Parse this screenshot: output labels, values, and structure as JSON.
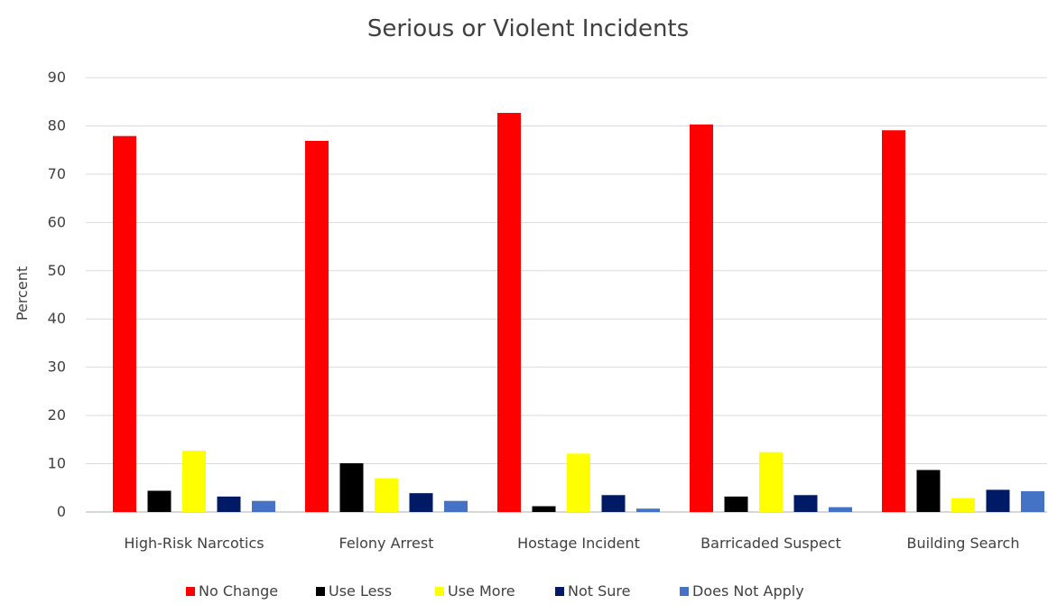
{
  "chart_data": {
    "type": "bar",
    "title": "Serious or Violent Incidents",
    "xlabel": "",
    "ylabel": "Percent",
    "ylim": [
      0,
      90
    ],
    "yticks": [
      0,
      10,
      20,
      30,
      40,
      50,
      60,
      70,
      80,
      90
    ],
    "grid": true,
    "legend_position": "bottom",
    "categories": [
      "High-Risk Narcotics",
      "Felony Arrest",
      "Hostage Incident",
      "Barricaded Suspect",
      "Building Search"
    ],
    "series": [
      {
        "name": "No Change",
        "color": "#ff0000",
        "values": [
          77.9,
          76.9,
          82.7,
          80.3,
          79.1
        ]
      },
      {
        "name": "Use Less",
        "color": "#000000",
        "values": [
          4.4,
          10.1,
          1.2,
          3.2,
          8.7
        ]
      },
      {
        "name": "Use More",
        "color": "#ffff00",
        "values": [
          12.7,
          7.0,
          12.1,
          12.4,
          2.9
        ]
      },
      {
        "name": "Not Sure",
        "color": "#001a66",
        "values": [
          3.2,
          3.9,
          3.5,
          3.5,
          4.6
        ]
      },
      {
        "name": "Does Not Apply",
        "color": "#4472c4",
        "values": [
          2.3,
          2.3,
          0.7,
          1.0,
          4.3
        ]
      }
    ]
  }
}
